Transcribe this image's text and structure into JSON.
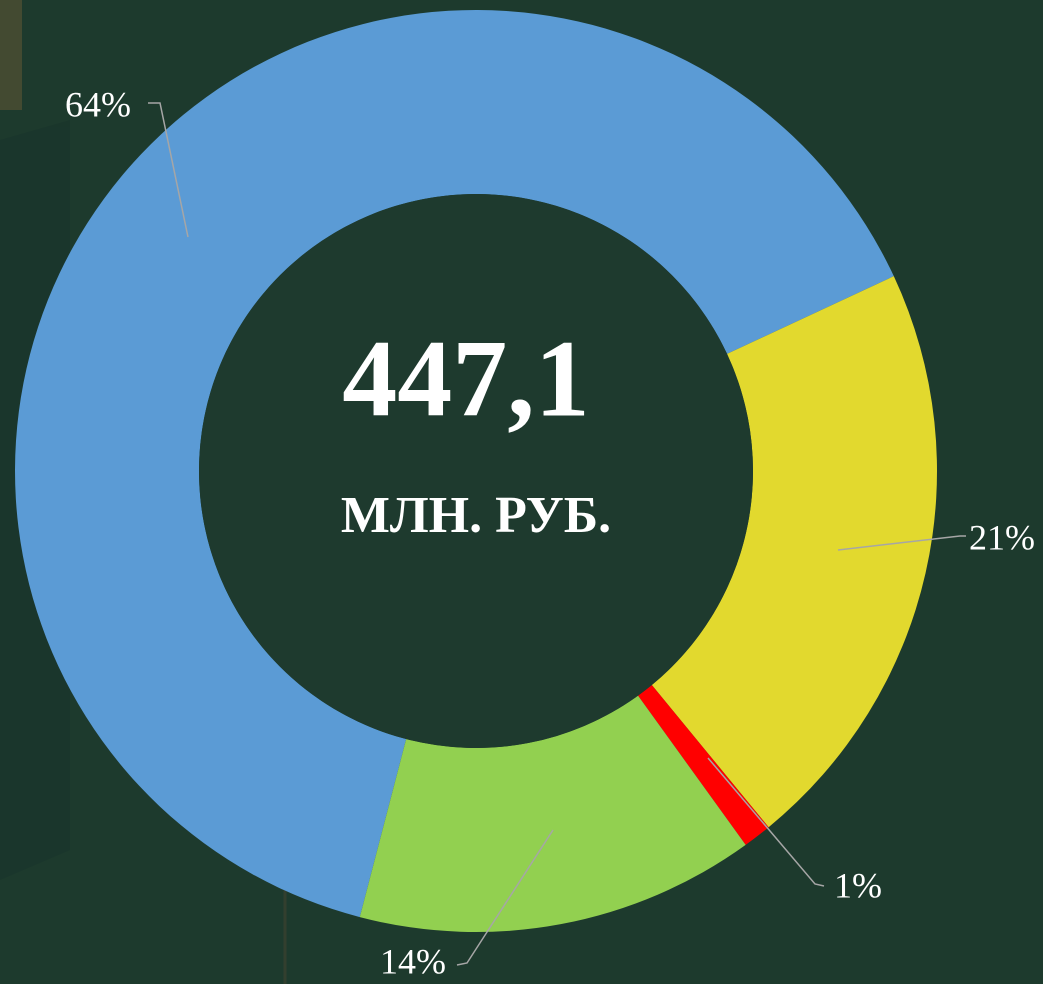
{
  "chart_data": {
    "type": "donut",
    "center_value": "447,1",
    "center_unit": "МЛН. РУБ.",
    "values": [
      64,
      21,
      1,
      14
    ],
    "value_labels": [
      "64%",
      "21%",
      "1%",
      "14%"
    ],
    "colors": [
      "#5b9bd5",
      "#e2d92e",
      "#ff0000",
      "#92d050"
    ]
  }
}
